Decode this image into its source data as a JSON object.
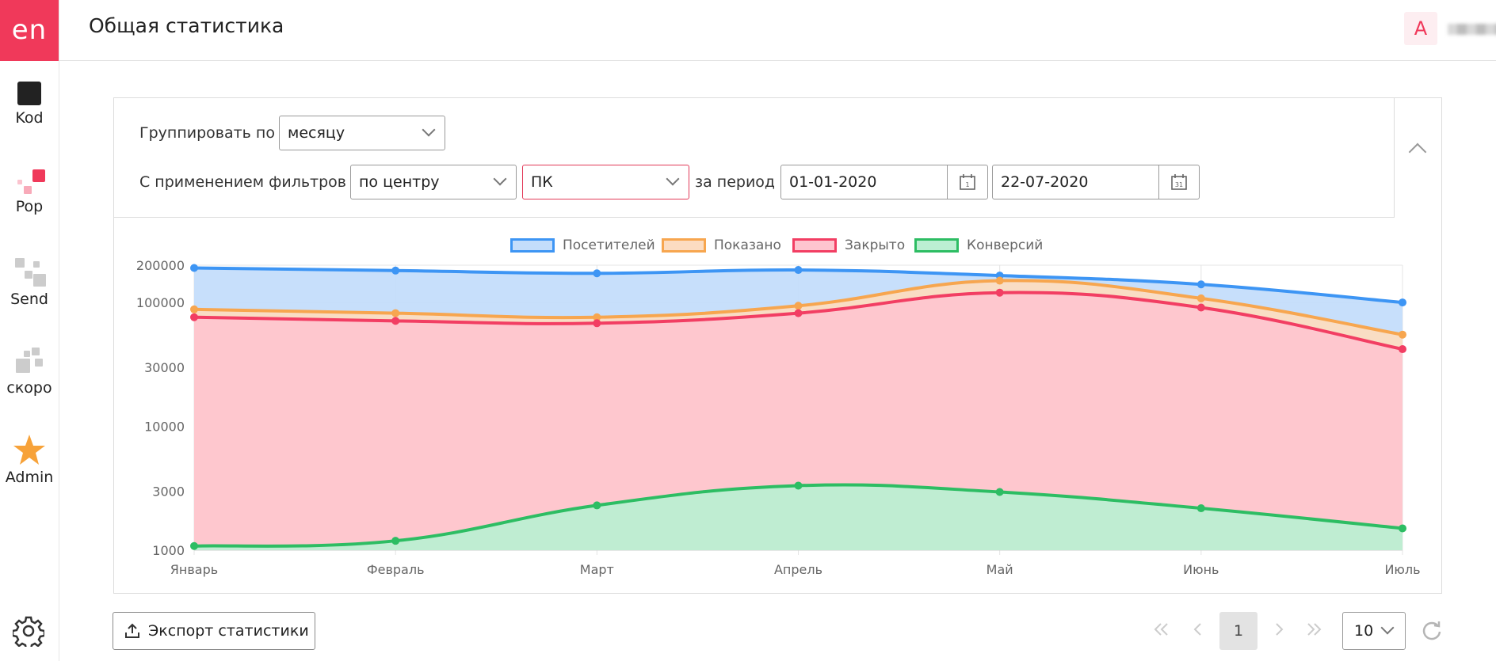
{
  "sidebar": {
    "logo": "en",
    "items": [
      {
        "label": "Kod",
        "icon": "square-icon"
      },
      {
        "label": "Pop",
        "icon": "pop-icon"
      },
      {
        "label": "Send",
        "icon": "send-icon"
      },
      {
        "label": "скоро",
        "icon": "soon-icon"
      },
      {
        "label": "Admin",
        "icon": "star-icon"
      }
    ],
    "settings_icon": "gear-icon"
  },
  "header": {
    "title": "Общая статистика",
    "avatar": "A"
  },
  "filters": {
    "group_label": "Группировать по",
    "group_value": "месяцу",
    "filter_label": "С применением фильтров",
    "filter_value_1": "по центру",
    "filter_value_2": "ПК",
    "period_label": "за период",
    "date_from": "01-01-2020",
    "date_to": "22-07-2020",
    "cal_day_from": "1",
    "cal_day_to": "31"
  },
  "footer": {
    "export_label": "Экспорт статистики",
    "page": "1",
    "per_page": "10"
  },
  "chart_data": {
    "type": "area",
    "y_scale": "log",
    "ylim": [
      1000,
      200000
    ],
    "y_ticks": [
      {
        "value": 200000,
        "label": "200000"
      },
      {
        "value": 100000,
        "label": "100000"
      },
      {
        "value": 30000,
        "label": "30000"
      },
      {
        "value": 10000,
        "label": "10000"
      },
      {
        "value": 3000,
        "label": "3000"
      },
      {
        "value": 1000,
        "label": "1000"
      }
    ],
    "categories": [
      "Январь",
      "Февраль",
      "Март",
      "Апрель",
      "Май",
      "Июнь",
      "Июль"
    ],
    "grid": true,
    "legend_position": "top",
    "series": [
      {
        "name": "Посетителей",
        "color": "#3d95f4",
        "fill": "#c4ddfb",
        "values": [
          190000,
          181000,
          172000,
          183000,
          165000,
          140000,
          100000
        ]
      },
      {
        "name": "Показано",
        "color": "#f7a64f",
        "fill": "#fcdcc1",
        "values": [
          88000,
          82000,
          76000,
          94000,
          150000,
          108000,
          55000
        ]
      },
      {
        "name": "Закрыто",
        "color": "#f23e63",
        "fill": "#fec5cf",
        "values": [
          76000,
          71000,
          68000,
          82000,
          120000,
          91000,
          42000
        ]
      },
      {
        "name": "Конверсий",
        "color": "#2dbd63",
        "fill": "#bcefd2",
        "values": [
          1080,
          1190,
          2300,
          3320,
          2950,
          2180,
          1500
        ]
      }
    ]
  }
}
